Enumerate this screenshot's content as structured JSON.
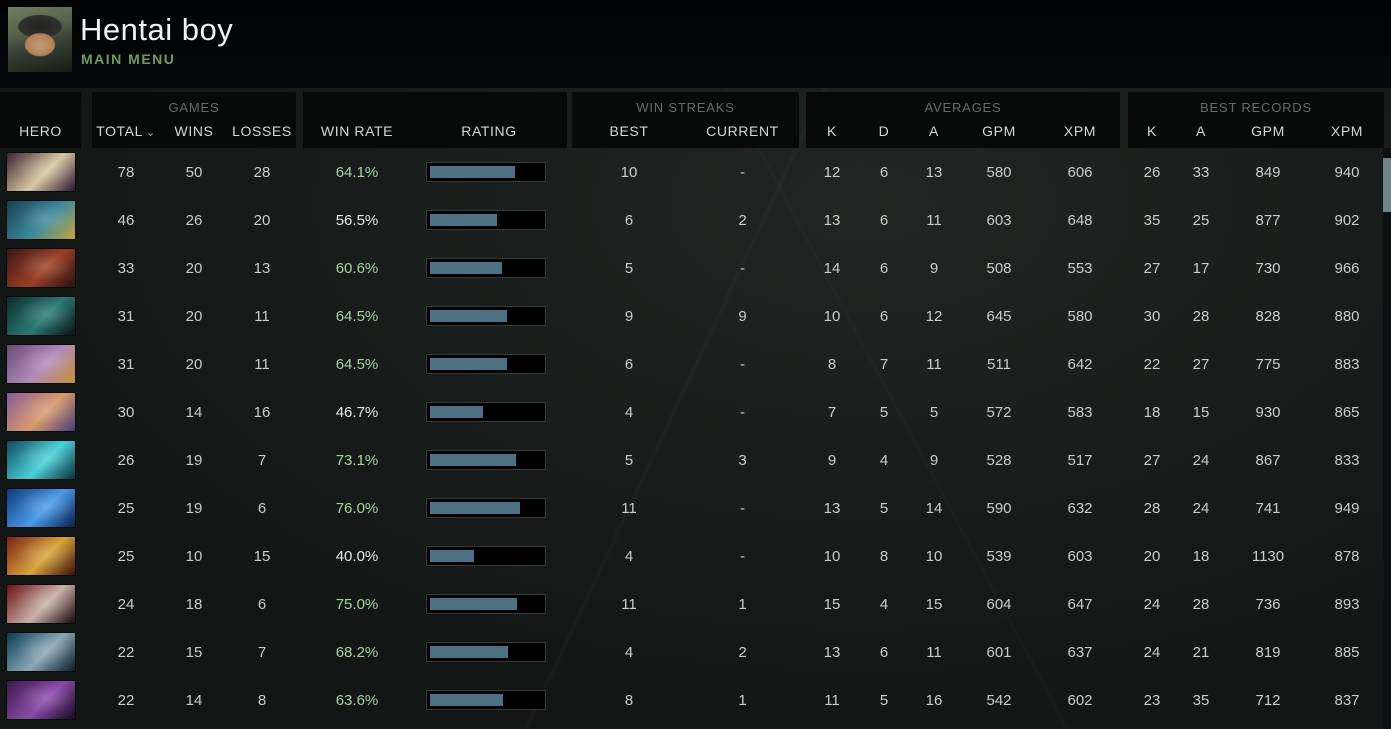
{
  "header": {
    "title": "Hentai boy",
    "subtitle": "MAIN MENU",
    "avatar_icon": "player-avatar"
  },
  "colors": {
    "accent_green": "#a7d49e",
    "menu_green": "#6f9c59",
    "rating_bar_fill": "#4d7183",
    "header_box_bg": "#070a09",
    "scroll_thumb": "#6f8488"
  },
  "table": {
    "groups": {
      "games": "GAMES",
      "win_streaks": "WIN STREAKS",
      "averages": "AVERAGES",
      "best_records": "BEST RECORDS"
    },
    "columns": {
      "hero": "HERO",
      "total": "TOTAL",
      "sort_caret": "⌄",
      "wins": "WINS",
      "losses": "LOSSES",
      "win_rate": "WIN RATE",
      "rating": "RATING",
      "best": "BEST",
      "current": "CURRENT",
      "k": "K",
      "d": "D",
      "a": "A",
      "gpm": "GPM",
      "xpm": "XPM"
    },
    "rows": [
      {
        "icon_colors": [
          "#3b2134",
          "#d8c7a0",
          "#2a1430"
        ],
        "total": "78",
        "wins": "50",
        "losses": "28",
        "win_rate": "64.1%",
        "win_rate_positive": true,
        "rating_pct": 76,
        "streak_best": "10",
        "streak_current": "-",
        "avg_k": "12",
        "avg_d": "6",
        "avg_a": "13",
        "avg_gpm": "580",
        "avg_xpm": "606",
        "best_k": "26",
        "best_a": "33",
        "best_gpm": "849",
        "best_xpm": "940"
      },
      {
        "icon_colors": [
          "#173f4e",
          "#3b899e",
          "#c8a43a"
        ],
        "total": "46",
        "wins": "26",
        "losses": "20",
        "win_rate": "56.5%",
        "win_rate_positive": false,
        "rating_pct": 60,
        "streak_best": "6",
        "streak_current": "2",
        "avg_k": "13",
        "avg_d": "6",
        "avg_a": "11",
        "avg_gpm": "603",
        "avg_xpm": "648",
        "best_k": "35",
        "best_a": "25",
        "best_gpm": "877",
        "best_xpm": "902"
      },
      {
        "icon_colors": [
          "#3a1616",
          "#9c3f24",
          "#27100f"
        ],
        "total": "33",
        "wins": "20",
        "losses": "13",
        "win_rate": "60.6%",
        "win_rate_positive": true,
        "rating_pct": 64,
        "streak_best": "5",
        "streak_current": "-",
        "avg_k": "14",
        "avg_d": "6",
        "avg_a": "9",
        "avg_gpm": "508",
        "avg_xpm": "553",
        "best_k": "27",
        "best_a": "17",
        "best_gpm": "730",
        "best_xpm": "966"
      },
      {
        "icon_colors": [
          "#0d2b2b",
          "#2a7a74",
          "#081414"
        ],
        "total": "31",
        "wins": "20",
        "losses": "11",
        "win_rate": "64.5%",
        "win_rate_positive": true,
        "rating_pct": 69,
        "streak_best": "9",
        "streak_current": "9",
        "avg_k": "10",
        "avg_d": "6",
        "avg_a": "12",
        "avg_gpm": "645",
        "avg_xpm": "580",
        "best_k": "30",
        "best_a": "28",
        "best_gpm": "828",
        "best_xpm": "880"
      },
      {
        "icon_colors": [
          "#6a4a78",
          "#b08ab8",
          "#c89030"
        ],
        "total": "31",
        "wins": "20",
        "losses": "11",
        "win_rate": "64.5%",
        "win_rate_positive": true,
        "rating_pct": 69,
        "streak_best": "6",
        "streak_current": "-",
        "avg_k": "8",
        "avg_d": "7",
        "avg_a": "11",
        "avg_gpm": "511",
        "avg_xpm": "642",
        "best_k": "22",
        "best_a": "27",
        "best_gpm": "775",
        "best_xpm": "883"
      },
      {
        "icon_colors": [
          "#8a5a9a",
          "#d89a6a",
          "#4a3a7a"
        ],
        "total": "30",
        "wins": "14",
        "losses": "16",
        "win_rate": "46.7%",
        "win_rate_positive": false,
        "rating_pct": 47,
        "streak_best": "4",
        "streak_current": "-",
        "avg_k": "7",
        "avg_d": "5",
        "avg_a": "5",
        "avg_gpm": "572",
        "avg_xpm": "583",
        "best_k": "18",
        "best_a": "15",
        "best_gpm": "930",
        "best_xpm": "865"
      },
      {
        "icon_colors": [
          "#0e4a5a",
          "#4ad0d8",
          "#0a2e3a"
        ],
        "total": "26",
        "wins": "19",
        "losses": "7",
        "win_rate": "73.1%",
        "win_rate_positive": true,
        "rating_pct": 77,
        "streak_best": "5",
        "streak_current": "3",
        "avg_k": "9",
        "avg_d": "4",
        "avg_a": "9",
        "avg_gpm": "528",
        "avg_xpm": "517",
        "best_k": "27",
        "best_a": "24",
        "best_gpm": "867",
        "best_xpm": "833"
      },
      {
        "icon_colors": [
          "#0e3a7a",
          "#4a9ae8",
          "#071f4a"
        ],
        "total": "25",
        "wins": "19",
        "losses": "6",
        "win_rate": "76.0%",
        "win_rate_positive": true,
        "rating_pct": 80,
        "streak_best": "11",
        "streak_current": "-",
        "avg_k": "13",
        "avg_d": "5",
        "avg_a": "14",
        "avg_gpm": "590",
        "avg_xpm": "632",
        "best_k": "28",
        "best_a": "24",
        "best_gpm": "741",
        "best_xpm": "949"
      },
      {
        "icon_colors": [
          "#7a1f14",
          "#d8a43a",
          "#3a0f0a"
        ],
        "total": "25",
        "wins": "10",
        "losses": "15",
        "win_rate": "40.0%",
        "win_rate_positive": false,
        "rating_pct": 39,
        "streak_best": "4",
        "streak_current": "-",
        "avg_k": "10",
        "avg_d": "8",
        "avg_a": "10",
        "avg_gpm": "539",
        "avg_xpm": "603",
        "best_k": "20",
        "best_a": "18",
        "best_gpm": "1130",
        "best_xpm": "878"
      },
      {
        "icon_colors": [
          "#6a1010",
          "#c8b0a8",
          "#1a0505"
        ],
        "total": "24",
        "wins": "18",
        "losses": "6",
        "win_rate": "75.0%",
        "win_rate_positive": true,
        "rating_pct": 78,
        "streak_best": "11",
        "streak_current": "1",
        "avg_k": "15",
        "avg_d": "4",
        "avg_a": "15",
        "avg_gpm": "604",
        "avg_xpm": "647",
        "best_k": "24",
        "best_a": "28",
        "best_gpm": "736",
        "best_xpm": "893"
      },
      {
        "icon_colors": [
          "#0a3a52",
          "#8aa8b8",
          "#0a1a28"
        ],
        "total": "22",
        "wins": "15",
        "losses": "7",
        "win_rate": "68.2%",
        "win_rate_positive": true,
        "rating_pct": 70,
        "streak_best": "4",
        "streak_current": "2",
        "avg_k": "13",
        "avg_d": "6",
        "avg_a": "11",
        "avg_gpm": "601",
        "avg_xpm": "637",
        "best_k": "24",
        "best_a": "21",
        "best_gpm": "819",
        "best_xpm": "885"
      },
      {
        "icon_colors": [
          "#3a1a4a",
          "#8a4aa8",
          "#120a1f"
        ],
        "total": "22",
        "wins": "14",
        "losses": "8",
        "win_rate": "63.6%",
        "win_rate_positive": true,
        "rating_pct": 65,
        "streak_best": "8",
        "streak_current": "1",
        "avg_k": "11",
        "avg_d": "5",
        "avg_a": "16",
        "avg_gpm": "542",
        "avg_xpm": "602",
        "best_k": "23",
        "best_a": "35",
        "best_gpm": "712",
        "best_xpm": "837"
      }
    ]
  }
}
